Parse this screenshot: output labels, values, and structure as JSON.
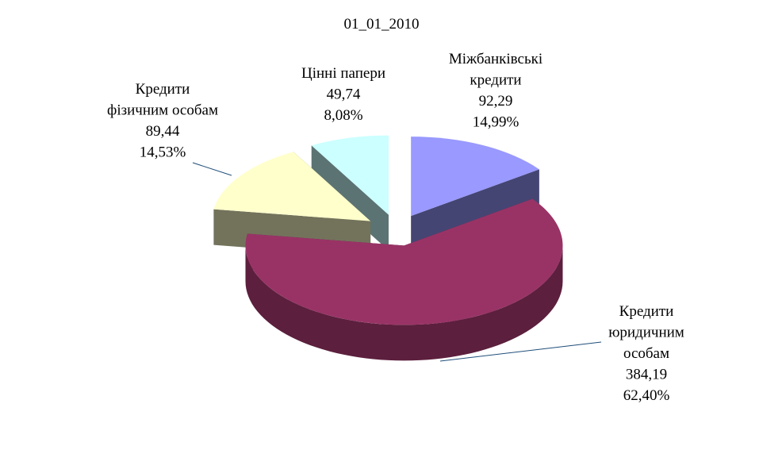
{
  "chart_data": {
    "type": "pie",
    "title": "01_01_2010",
    "categories": [
      "Міжбанківські\nкредити",
      "Кредити\nюридичним\nособам",
      "Кредити\nфізичним особам",
      "Цінні папери"
    ],
    "values": [
      92.29,
      384.19,
      89.44,
      49.74
    ],
    "value_labels": [
      "92,29",
      "384,19",
      "89,44",
      "49,74"
    ],
    "percents": [
      14.99,
      62.4,
      14.53,
      8.08
    ],
    "percent_labels": [
      "14,99%",
      "62,40%",
      "14,53%",
      "8,08%"
    ],
    "colors": [
      "#9999ff",
      "#993366",
      "#ffffcc",
      "#ccffff"
    ]
  }
}
